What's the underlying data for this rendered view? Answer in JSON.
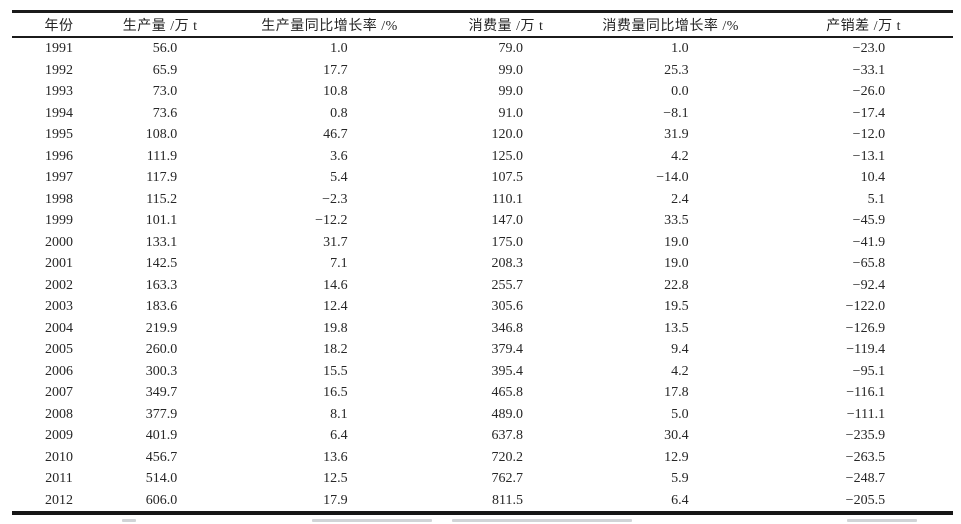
{
  "table": {
    "columns": [
      {
        "label": "年份"
      },
      {
        "label": "生产量 /万 t"
      },
      {
        "label": "生产量同比增长率 /%"
      },
      {
        "label": "消费量 /万 t"
      },
      {
        "label": "消费量同比增长率 /%"
      },
      {
        "label": "产销差 /万 t"
      }
    ],
    "rows": [
      [
        "1991",
        "56.0",
        "1.0",
        "79.0",
        "1.0",
        "−23.0"
      ],
      [
        "1992",
        "65.9",
        "17.7",
        "99.0",
        "25.3",
        "−33.1"
      ],
      [
        "1993",
        "73.0",
        "10.8",
        "99.0",
        "0.0",
        "−26.0"
      ],
      [
        "1994",
        "73.6",
        "0.8",
        "91.0",
        "−8.1",
        "−17.4"
      ],
      [
        "1995",
        "108.0",
        "46.7",
        "120.0",
        "31.9",
        "−12.0"
      ],
      [
        "1996",
        "111.9",
        "3.6",
        "125.0",
        "4.2",
        "−13.1"
      ],
      [
        "1997",
        "117.9",
        "5.4",
        "107.5",
        "−14.0",
        "10.4"
      ],
      [
        "1998",
        "115.2",
        "−2.3",
        "110.1",
        "2.4",
        "5.1"
      ],
      [
        "1999",
        "101.1",
        "−12.2",
        "147.0",
        "33.5",
        "−45.9"
      ],
      [
        "2000",
        "133.1",
        "31.7",
        "175.0",
        "19.0",
        "−41.9"
      ],
      [
        "2001",
        "142.5",
        "7.1",
        "208.3",
        "19.0",
        "−65.8"
      ],
      [
        "2002",
        "163.3",
        "14.6",
        "255.7",
        "22.8",
        "−92.4"
      ],
      [
        "2003",
        "183.6",
        "12.4",
        "305.6",
        "19.5",
        "−122.0"
      ],
      [
        "2004",
        "219.9",
        "19.8",
        "346.8",
        "13.5",
        "−126.9"
      ],
      [
        "2005",
        "260.0",
        "18.2",
        "379.4",
        "9.4",
        "−119.4"
      ],
      [
        "2006",
        "300.3",
        "15.5",
        "395.4",
        "4.2",
        "−95.1"
      ],
      [
        "2007",
        "349.7",
        "16.5",
        "465.8",
        "17.8",
        "−116.1"
      ],
      [
        "2008",
        "377.9",
        "8.1",
        "489.0",
        "5.0",
        "−111.1"
      ],
      [
        "2009",
        "401.9",
        "6.4",
        "637.8",
        "30.4",
        "−235.9"
      ],
      [
        "2010",
        "456.7",
        "13.6",
        "720.2",
        "12.9",
        "−263.5"
      ],
      [
        "2011",
        "514.0",
        "12.5",
        "762.7",
        "5.9",
        "−248.7"
      ],
      [
        "2012",
        "606.0",
        "17.9",
        "811.5",
        "6.4",
        "−205.5"
      ]
    ]
  },
  "style": {
    "background": "#ffffff",
    "text_color": "#262626",
    "rule_color": "#1b1b1b"
  }
}
